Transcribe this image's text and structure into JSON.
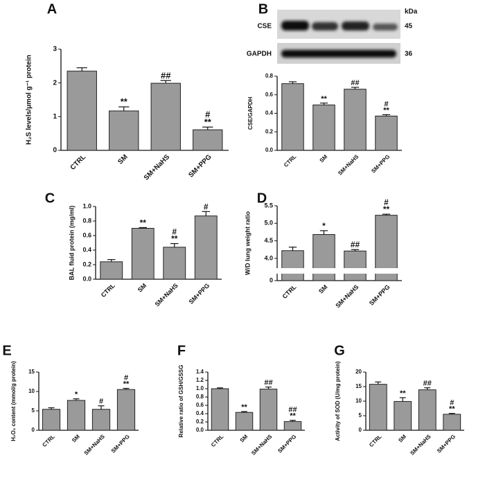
{
  "chart_data": [
    {
      "type": "bar",
      "panel": "A",
      "ylabel": "H₂S levels/μmol g⁻¹ protein",
      "categories": [
        "CTRL",
        "SM",
        "SM+NaHS",
        "SM+PPG"
      ],
      "values": [
        2.35,
        1.17,
        1.99,
        0.61
      ],
      "errors": [
        0.1,
        0.12,
        0.08,
        0.08
      ],
      "color": "#9a9a9a",
      "annotations": [
        null,
        [
          "**"
        ],
        [
          "##"
        ],
        [
          "#",
          "**"
        ]
      ],
      "ylim": [
        0,
        3
      ],
      "yticks": [
        0,
        1,
        2,
        3
      ]
    },
    {
      "type": "bar",
      "panel": "B",
      "ylabel": "CSE/GAPDH",
      "categories": [
        "CTRL",
        "SM",
        "SM+NaHS",
        "SM+PPG"
      ],
      "values": [
        0.72,
        0.49,
        0.66,
        0.37
      ],
      "errors": [
        0.02,
        0.02,
        0.02,
        0.015
      ],
      "color": "#9a9a9a",
      "annotations": [
        null,
        [
          "**"
        ],
        [
          "##"
        ],
        [
          "#",
          "**"
        ]
      ],
      "ylim": [
        0,
        0.8
      ],
      "yticks": [
        {
          "value": 0,
          "label": "0.0"
        },
        0.2,
        0.4,
        0.6,
        0.8
      ],
      "blot": {
        "unit": "kDa",
        "rows": [
          {
            "label": "CSE",
            "kda": 45
          },
          {
            "label": "GAPDH",
            "kda": 36
          }
        ]
      }
    },
    {
      "type": "bar",
      "panel": "C",
      "ylabel": "BAL fluid protein (mg/ml)",
      "categories": [
        "CTRL",
        "SM",
        "SM+NaHS",
        "SM+PPG"
      ],
      "values": [
        0.24,
        0.7,
        0.44,
        0.87
      ],
      "errors": [
        0.03,
        0.01,
        0.05,
        0.06
      ],
      "color": "#9a9a9a",
      "annotations": [
        null,
        [
          "**"
        ],
        [
          "#",
          "**"
        ],
        [
          "#"
        ]
      ],
      "ylim": [
        0,
        1
      ],
      "yticks": [
        {
          "value": 0,
          "label": "0.0"
        },
        0.2,
        0.4,
        0.6,
        0.8,
        {
          "value": 1,
          "label": "1.0"
        }
      ]
    },
    {
      "type": "bar",
      "panel": "D",
      "ylabel": "W/D lung weight ratio",
      "categories": [
        "CTRL",
        "SM",
        "SM+NaHS",
        "SM+PPG"
      ],
      "values": [
        4.22,
        4.68,
        4.21,
        5.23
      ],
      "errors": [
        0.1,
        0.11,
        0.04,
        0.03
      ],
      "color": "#9a9a9a",
      "annotations": [
        null,
        [
          "*"
        ],
        [
          "##"
        ],
        [
          "#",
          "**"
        ]
      ],
      "ylim": [
        3.8,
        5.5
      ],
      "yticks": [
        {
          "value": 4,
          "label": "4.0"
        },
        4.5,
        {
          "value": 5,
          "label": "5.0"
        },
        5.5
      ],
      "ybreak_ticks": [
        0
      ]
    },
    {
      "type": "bar",
      "panel": "E",
      "ylabel": "H₂O₂ content (mmol/g protein)",
      "categories": [
        "CTRL",
        "SM",
        "SM+NaHS",
        "SM+PPG"
      ],
      "values": [
        5.4,
        7.7,
        5.4,
        10.5
      ],
      "errors": [
        0.4,
        0.4,
        0.9,
        0.3
      ],
      "color": "#9a9a9a",
      "annotations": [
        null,
        [
          "*"
        ],
        [
          "#"
        ],
        [
          "#",
          "**"
        ]
      ],
      "ylim": [
        0,
        15
      ],
      "yticks": [
        0,
        5,
        10,
        15
      ]
    },
    {
      "type": "bar",
      "panel": "F",
      "ylabel": "Relative ratio of GSH/GSSG",
      "categories": [
        "CTRL",
        "SM",
        "SM+NaHS",
        "SM+PPG"
      ],
      "values": [
        1.0,
        0.43,
        0.99,
        0.21
      ],
      "errors": [
        0.02,
        0.02,
        0.05,
        0.03
      ],
      "color": "#9a9a9a",
      "annotations": [
        null,
        [
          "**"
        ],
        [
          "##"
        ],
        [
          "##",
          "**"
        ]
      ],
      "ylim": [
        0,
        1.4
      ],
      "yticks": [
        {
          "value": 0,
          "label": "0.0"
        },
        0.2,
        0.4,
        0.6,
        0.8,
        {
          "value": 1,
          "label": "1.0"
        },
        1.2,
        1.4
      ]
    },
    {
      "type": "bar",
      "panel": "G",
      "ylabel": "Activity of SOD (U/mg protein)",
      "categories": [
        "CTRL",
        "SM",
        "SM+NaHS",
        "SM+PPG"
      ],
      "values": [
        15.8,
        9.9,
        13.9,
        5.5
      ],
      "errors": [
        0.8,
        1.3,
        0.7,
        0.3
      ],
      "color": "#9a9a9a",
      "annotations": [
        null,
        [
          "**"
        ],
        [
          "##"
        ],
        [
          "#",
          "**"
        ]
      ],
      "ylim": [
        0,
        20
      ],
      "yticks": [
        0,
        5,
        10,
        15,
        20
      ]
    }
  ]
}
